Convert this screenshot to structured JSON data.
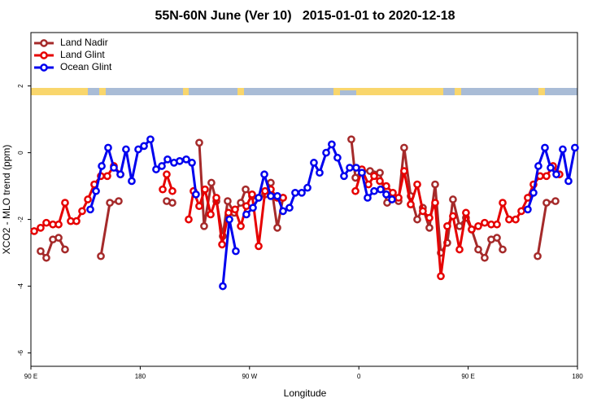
{
  "chart_data": {
    "type": "line",
    "title": "55N-60N June (Ver 10)   2015-01-01 to 2020-12-18",
    "x_label": "Longitude",
    "y_label": "XCO2 - MLO trend (ppm)",
    "xlim": [
      90,
      540
    ],
    "ylim": [
      -6.4,
      3.6
    ],
    "xticks": [
      {
        "value": 90,
        "label": "90 E"
      },
      {
        "value": 180,
        "label": "180"
      },
      {
        "value": 270,
        "label": "90 W"
      },
      {
        "value": 360,
        "label": "0"
      },
      {
        "value": 450,
        "label": "90 E"
      },
      {
        "value": 540,
        "label": "180"
      }
    ],
    "yticks": [
      2,
      0,
      -2,
      -4,
      -6
    ],
    "legend": "top-left",
    "series": [
      {
        "name": "Land Nadir",
        "color": "#a52a2a",
        "x": [
          98.0,
          102.7,
          108.1,
          112.8,
          118.1,
          null,
          147.6,
          155.0,
          162.3,
          null,
          201.8,
          206.5,
          null,
          228.6,
          232.6,
          238.6,
          242.7,
          248.0,
          252.0,
          257.4,
          262.8,
          266.8,
          272.1,
          277.5,
          282.8,
          287.5,
          292.9,
          297.6,
          null,
          353.8,
          357.2,
          362.5,
          369.2,
          372.6,
          377.3,
          383.3,
          388.0,
          392.7,
          397.3,
          402.7,
          408.1,
          412.7,
          418.1,
          422.8,
          427.5,
          432.8,
          437.5,
          442.9,
          448.2,
          452.9,
          458.3,
          463.6,
          469.0,
          473.7,
          478.4,
          null,
          507.2,
          514.5,
          521.9
        ],
        "values": [
          -2.95,
          -3.15,
          -2.6,
          -2.55,
          -2.9,
          null,
          -3.1,
          -1.5,
          -1.45,
          null,
          -1.45,
          -1.5,
          null,
          0.3,
          -2.2,
          -0.9,
          -1.45,
          -2.5,
          -1.45,
          -1.8,
          -1.5,
          -1.1,
          -1.3,
          -1.35,
          -1.25,
          -0.9,
          -2.25,
          -1.35,
          null,
          0.4,
          -0.75,
          -0.55,
          -0.55,
          -0.65,
          -0.6,
          -1.5,
          -1.3,
          -1.45,
          0.15,
          -1.3,
          -2.0,
          -1.65,
          -2.25,
          -0.95,
          -3.0,
          -2.7,
          -1.4,
          -2.2,
          -1.95,
          -2.3,
          -2.9,
          -3.15,
          -2.6,
          -2.55,
          -2.9,
          null,
          -3.1,
          -1.5,
          -1.45
        ]
      },
      {
        "name": "Land Glint",
        "color": "#e60000",
        "x": [
          92.7,
          98.0,
          102.7,
          108.1,
          112.8,
          118.1,
          122.8,
          127.5,
          132.2,
          136.9,
          142.2,
          147.6,
          152.9,
          158.3,
          163.7,
          null,
          198.5,
          201.8,
          206.5,
          null,
          219.9,
          223.9,
          228.6,
          233.3,
          238.0,
          242.7,
          247.4,
          252.7,
          258.1,
          262.8,
          267.4,
          272.1,
          277.5,
          282.8,
          287.5,
          292.9,
          297.6,
          null,
          357.2,
          362.5,
          367.9,
          372.6,
          377.3,
          382.6,
          388.0,
          392.7,
          397.3,
          402.7,
          408.1,
          412.7,
          418.1,
          422.8,
          427.5,
          432.8,
          437.5,
          442.9,
          448.2,
          452.9,
          458.3,
          463.6,
          469.0,
          473.7,
          478.4,
          483.7,
          489.1,
          493.8,
          499.1,
          503.8,
          509.2,
          514.5,
          519.9,
          525.2
        ],
        "values": [
          -2.35,
          -2.25,
          -2.1,
          -2.15,
          -2.15,
          -1.5,
          -2.05,
          -2.05,
          -1.75,
          -1.4,
          -0.95,
          -0.7,
          -0.7,
          -0.4,
          -0.65,
          null,
          -1.1,
          -0.65,
          -1.15,
          null,
          -2.0,
          -1.15,
          -1.6,
          -1.1,
          -1.85,
          -1.35,
          -2.75,
          -1.8,
          -1.7,
          -2.2,
          -1.6,
          -1.25,
          -2.8,
          -1.15,
          -1.1,
          -1.35,
          -1.35,
          null,
          -1.15,
          -0.5,
          -0.95,
          -0.7,
          -0.85,
          -1.0,
          -1.2,
          -1.35,
          -0.55,
          -1.55,
          -0.95,
          -1.75,
          -1.95,
          -1.5,
          -3.7,
          -2.2,
          -1.9,
          -2.9,
          -1.8,
          -2.3,
          -2.2,
          -2.1,
          -2.15,
          -2.15,
          -1.5,
          -2.0,
          -2.0,
          -1.75,
          -1.35,
          -0.95,
          -0.7,
          -0.7,
          -0.4,
          -0.65
        ]
      },
      {
        "name": "Ocean Glint",
        "color": "#0000ee",
        "x": [
          138.9,
          143.6,
          148.3,
          153.6,
          158.3,
          163.7,
          168.3,
          173.0,
          178.4,
          183.1,
          188.4,
          193.1,
          197.8,
          202.5,
          207.8,
          212.5,
          217.9,
          222.6,
          225.9,
          null,
          248.0,
          253.4,
          258.7,
          null,
          267.4,
          272.8,
          277.5,
          282.2,
          287.5,
          292.9,
          297.6,
          302.9,
          307.6,
          313.0,
          317.7,
          323.0,
          327.7,
          333.1,
          337.7,
          342.4,
          347.8,
          352.5,
          357.8,
          362.5,
          367.2,
          372.6,
          377.9,
          382.6,
          387.3,
          null,
          499.1,
          503.8,
          507.8,
          513.2,
          517.9,
          522.6,
          527.9,
          532.6,
          537.9
        ],
        "values": [
          -1.7,
          -1.15,
          -0.4,
          0.15,
          -0.45,
          -0.65,
          0.1,
          -0.85,
          0.1,
          0.2,
          0.4,
          -0.5,
          -0.4,
          -0.2,
          -0.3,
          -0.25,
          -0.2,
          -0.3,
          -1.25,
          null,
          -4.0,
          -2.0,
          -2.95,
          null,
          -1.85,
          -1.65,
          -1.35,
          -0.65,
          -1.3,
          -1.3,
          -1.75,
          -1.65,
          -1.2,
          -1.2,
          -1.05,
          -0.3,
          -0.6,
          0.0,
          0.25,
          -0.15,
          -0.7,
          -0.45,
          -0.45,
          -0.6,
          -1.35,
          -1.15,
          -1.1,
          -1.25,
          -1.4,
          null,
          -1.7,
          -1.2,
          -0.4,
          0.15,
          -0.45,
          -0.65,
          0.1,
          -0.85,
          0.15
        ]
      }
    ]
  }
}
